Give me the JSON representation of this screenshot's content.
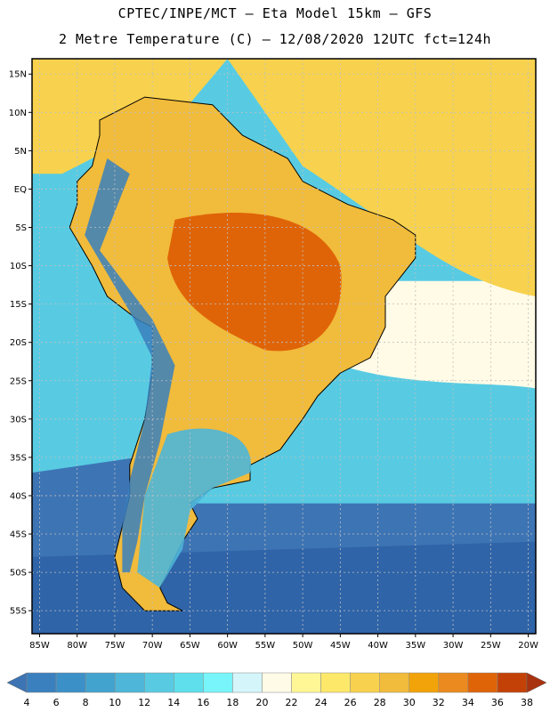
{
  "header": {
    "line1": "CPTEC/INPE/MCT –  Eta Model 15km – GFS",
    "line2": "2 Metre Temperature (C) – 12/08/2020 12UTC fct=124h"
  },
  "axes": {
    "lat_labels": [
      "15N",
      "10N",
      "5N",
      "EQ",
      "5S",
      "10S",
      "15S",
      "20S",
      "25S",
      "30S",
      "35S",
      "40S",
      "45S",
      "50S",
      "55S"
    ],
    "lon_labels": [
      "85W",
      "80W",
      "75W",
      "70W",
      "65W",
      "60W",
      "55W",
      "50W",
      "45W",
      "40W",
      "35W",
      "30W",
      "25W",
      "20W"
    ]
  },
  "colorbar": {
    "labels": [
      "4",
      "6",
      "8",
      "10",
      "12",
      "14",
      "16",
      "18",
      "20",
      "22",
      "24",
      "26",
      "28",
      "30",
      "32",
      "34",
      "36",
      "38"
    ],
    "colors": [
      "#3d74b4",
      "#3a80be",
      "#3c90c8",
      "#43a3cf",
      "#4eb6d9",
      "#58cbe3",
      "#5fdfeb",
      "#78f5fa",
      "#d4f6fb",
      "#fffbe6",
      "#fff795",
      "#fde86a",
      "#f8d24e",
      "#f1bb3b",
      "#f2a309",
      "#eb8a1e",
      "#df6408",
      "#c34106",
      "#a9320f"
    ]
  },
  "palette": {
    "ocean_deep": "#2f64a8",
    "ocean_mid": "#3d74b4",
    "ocean_cool": "#43a3cf",
    "ocean_warm": "#58cbe3",
    "atlantic_north": "#f8d24e",
    "atlantic_south": "#fffbe6",
    "land_hot": "#df6408",
    "land_warm": "#f1bb3b",
    "andes": "#3a80be",
    "patagonia": "#4eb6d9",
    "border": "#000000",
    "grid": "#bfbfbf"
  }
}
